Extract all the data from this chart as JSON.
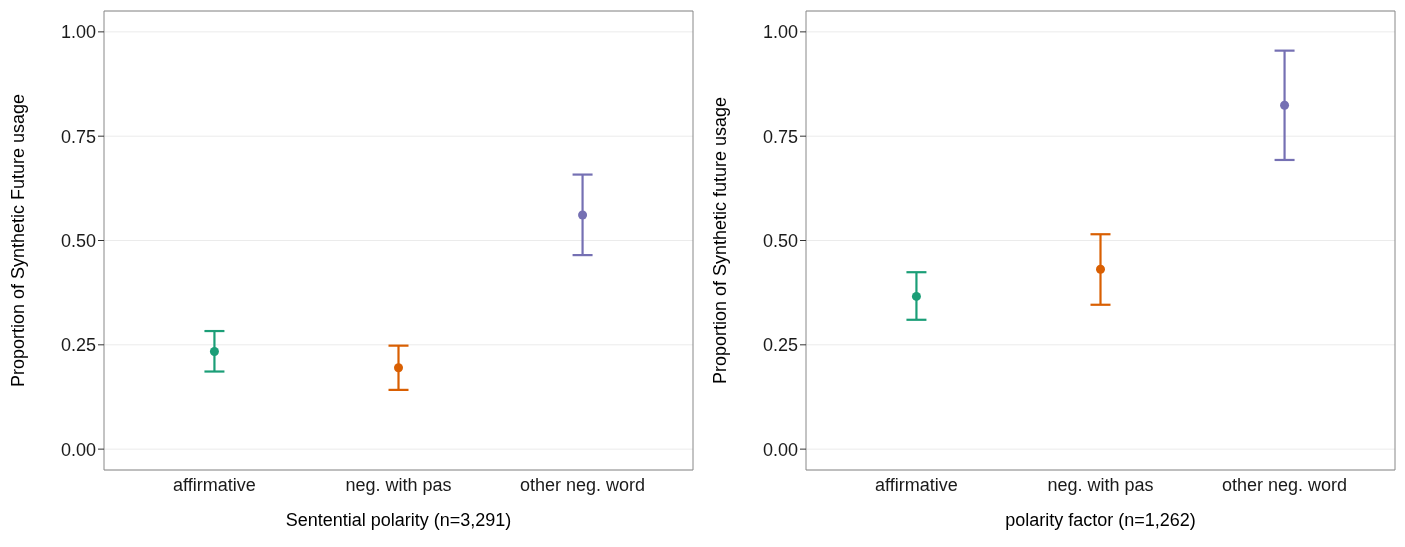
{
  "chart_data": [
    {
      "type": "scatter",
      "categories": [
        "affirmative",
        "neg. with pas",
        "other neg. word"
      ],
      "xlabel": "Sentential polarity (n=3,291)",
      "ylabel": "Proportion of Synthetic Future usage",
      "values": [
        0.234,
        0.195,
        0.561
      ],
      "colors": [
        "#1b9e77",
        "#d95f02",
        "#7570b3"
      ],
      "errors": [
        [
          0.186,
          0.283
        ],
        [
          0.142,
          0.248
        ],
        [
          0.465,
          0.658
        ]
      ],
      "ylim": [
        -0.05,
        1.05
      ],
      "yticks": [
        {
          "value": 0,
          "label": "0.00"
        },
        {
          "value": 0.25,
          "label": "0.25"
        },
        {
          "value": 0.5,
          "label": "0.50"
        },
        {
          "value": 0.75,
          "label": "0.75"
        },
        {
          "value": 1,
          "label": "1.00"
        }
      ],
      "grid": "y",
      "marker": "circle"
    },
    {
      "type": "scatter",
      "categories": [
        "affirmative",
        "neg. with pas",
        "other neg. word"
      ],
      "xlabel": "polarity factor (n=1,262)",
      "ylabel": "Proportion of Synthetic future usage",
      "values": [
        0.366,
        0.431,
        0.824
      ],
      "colors": [
        "#1b9e77",
        "#d95f02",
        "#7570b3"
      ],
      "errors": [
        [
          0.31,
          0.424
        ],
        [
          0.346,
          0.515
        ],
        [
          0.693,
          0.955
        ]
      ],
      "ylim": [
        -0.05,
        1.05
      ],
      "yticks": [
        {
          "value": 0,
          "label": "0.00"
        },
        {
          "value": 0.25,
          "label": "0.25"
        },
        {
          "value": 0.5,
          "label": "0.50"
        },
        {
          "value": 0.75,
          "label": "0.75"
        },
        {
          "value": 1,
          "label": "1.00"
        }
      ],
      "grid": "y",
      "marker": "circle"
    }
  ]
}
